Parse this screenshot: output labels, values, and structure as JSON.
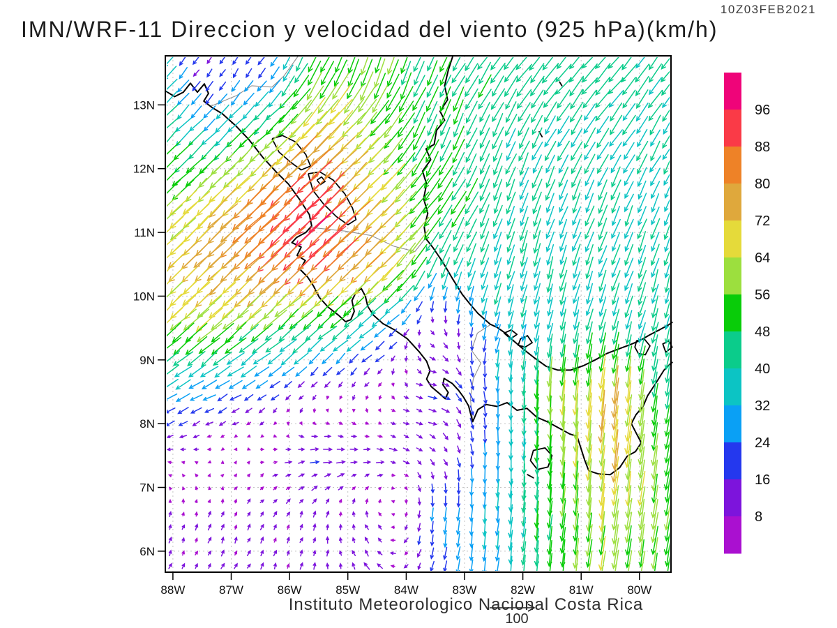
{
  "header": {
    "title": "IMN/WRF-11 Direccion y velocidad del viento (925 hPa)(km/h)",
    "timestamp": "10Z03FEB2021"
  },
  "footer": {
    "caption": "Instituto Meteorologico Nacional Costa Rica",
    "ref_label": "100",
    "ref_speed_kmh": 100
  },
  "axes": {
    "lat_labels": [
      [
        "13N",
        13
      ],
      [
        "12N",
        12
      ],
      [
        "11N",
        11
      ],
      [
        "10N",
        10
      ],
      [
        "9N",
        9
      ],
      [
        "8N",
        8
      ],
      [
        "7N",
        7
      ],
      [
        "6N",
        6
      ]
    ],
    "lon_labels": [
      [
        "88W",
        -88
      ],
      [
        "87W",
        -87
      ],
      [
        "86W",
        -86
      ],
      [
        "85W",
        -85
      ],
      [
        "84W",
        -84
      ],
      [
        "83W",
        -83
      ],
      [
        "82W",
        -82
      ],
      [
        "81W",
        -81
      ],
      [
        "80W",
        -80
      ]
    ]
  },
  "colorbar": {
    "labels": [
      "96",
      "88",
      "80",
      "72",
      "64",
      "56",
      "48",
      "40",
      "32",
      "24",
      "16",
      "8"
    ],
    "colors_low_to_high": [
      "#aa10d0",
      "#7d14dc",
      "#2438ee",
      "#0aa0f5",
      "#0cc4c4",
      "#0bcc8b",
      "#09cc09",
      "#9cdf3e",
      "#e5da3a",
      "#dfa83c",
      "#ee8227",
      "#fa3a47",
      "#ef0479"
    ]
  },
  "chart_data": {
    "type": "vector_field",
    "variable": "Direccion y velocidad del viento",
    "model": "IMN/WRF-11",
    "level": "925 hPa",
    "units": "km/h",
    "valid_time": "10Z03FEB2021",
    "lon_range": [
      -88.13,
      -79.46
    ],
    "lat_range": [
      5.67,
      13.77
    ],
    "speed_bin_width": 8,
    "speed_bins": [
      8,
      16,
      24,
      32,
      40,
      48,
      56,
      64,
      72,
      80,
      88,
      96
    ],
    "grid_lons": [
      -88.5,
      -87.5,
      -86.5,
      -85.5,
      -84.5,
      -83.5,
      -82.5,
      -81.5,
      -80.5,
      -79.5
    ],
    "grid_lats": [
      13.5,
      12.5,
      11.5,
      10.5,
      9.5,
      8.5,
      7.5,
      6.5,
      5.5
    ],
    "u_kmh": [
      [
        -32,
        -8,
        -12,
        -25,
        -18,
        -20,
        -25,
        -28,
        -27,
        -26
      ],
      [
        -38,
        -24,
        -36,
        -56,
        -42,
        -18,
        -18,
        -20,
        -22,
        -20
      ],
      [
        -40,
        -48,
        -60,
        -68,
        -50,
        -32,
        -15,
        -14,
        -16,
        -14
      ],
      [
        -50,
        -55,
        -60,
        -64,
        -58,
        -18,
        -12,
        -10,
        -15,
        -12
      ],
      [
        -44,
        -44,
        -40,
        -35,
        -25,
        6,
        -8,
        -8,
        -10,
        -10
      ],
      [
        -28,
        -24,
        -17,
        -5,
        -4,
        18,
        0,
        -4,
        -8,
        -8
      ],
      [
        -10,
        -4,
        6,
        16,
        14,
        7,
        0,
        -3,
        -8,
        -8
      ],
      [
        2,
        3,
        4,
        3,
        -5,
        -3,
        -3,
        -5,
        -8,
        -9
      ],
      [
        4,
        5,
        4,
        2,
        -12,
        -4,
        -4,
        -6,
        -8,
        -8
      ]
    ],
    "v_kmh": [
      [
        -32,
        -12,
        -16,
        -48,
        -52,
        -42,
        -38,
        -34,
        -33,
        -32
      ],
      [
        -38,
        -26,
        -36,
        -54,
        -42,
        -45,
        -40,
        -36,
        -34,
        -34
      ],
      [
        -38,
        -45,
        -58,
        -65,
        -50,
        -42,
        -40,
        -38,
        -36,
        -34
      ],
      [
        -48,
        -52,
        -58,
        -62,
        -55,
        -36,
        -40,
        -40,
        -36,
        -40
      ],
      [
        -42,
        -40,
        -35,
        -30,
        -20,
        -6,
        -30,
        -36,
        -36,
        -40
      ],
      [
        -16,
        -13,
        -10,
        -8,
        -6,
        -3,
        -26,
        -62,
        -74,
        -45
      ],
      [
        0,
        0,
        1,
        2,
        0,
        -7,
        -27,
        -52,
        -70,
        -55
      ],
      [
        7,
        9,
        9,
        10,
        9,
        -24,
        -32,
        -50,
        -62,
        -55
      ],
      [
        7,
        8,
        9,
        10,
        10,
        -20,
        -30,
        -48,
        -58,
        -50
      ]
    ],
    "geo": {
      "coastlines": [
        [
          [
            -88.13,
            13.22
          ],
          [
            -87.97,
            13.13
          ],
          [
            -87.82,
            13.2
          ],
          [
            -87.7,
            13.34
          ],
          [
            -87.58,
            13.2
          ],
          [
            -87.46,
            13.33
          ],
          [
            -87.39,
            13.18
          ],
          [
            -87.47,
            13.06
          ],
          [
            -87.33,
            12.96
          ],
          [
            -87.15,
            12.86
          ],
          [
            -86.93,
            12.68
          ],
          [
            -86.7,
            12.46
          ],
          [
            -86.46,
            12.18
          ],
          [
            -86.22,
            11.94
          ],
          [
            -86.02,
            11.76
          ],
          [
            -85.83,
            11.52
          ],
          [
            -85.66,
            11.28
          ],
          [
            -85.62,
            11.1
          ],
          [
            -85.72,
            11.0
          ],
          [
            -85.88,
            10.92
          ],
          [
            -85.96,
            10.84
          ],
          [
            -85.8,
            10.77
          ],
          [
            -85.87,
            10.64
          ],
          [
            -85.73,
            10.56
          ],
          [
            -85.82,
            10.42
          ],
          [
            -85.69,
            10.3
          ],
          [
            -85.59,
            10.16
          ],
          [
            -85.49,
            9.98
          ],
          [
            -85.34,
            9.83
          ],
          [
            -85.16,
            9.7
          ],
          [
            -85.04,
            9.6
          ],
          [
            -84.95,
            9.63
          ],
          [
            -84.89,
            9.76
          ],
          [
            -84.93,
            9.93
          ],
          [
            -84.86,
            10.06
          ],
          [
            -84.77,
            10.12
          ],
          [
            -84.7,
            10.0
          ],
          [
            -84.66,
            9.84
          ],
          [
            -84.56,
            9.7
          ],
          [
            -84.4,
            9.57
          ],
          [
            -84.2,
            9.47
          ],
          [
            -83.98,
            9.33
          ],
          [
            -83.78,
            9.13
          ],
          [
            -83.65,
            8.98
          ],
          [
            -83.59,
            8.83
          ],
          [
            -83.65,
            8.7
          ],
          [
            -83.57,
            8.58
          ],
          [
            -83.44,
            8.48
          ],
          [
            -83.33,
            8.39
          ],
          [
            -83.28,
            8.49
          ],
          [
            -83.37,
            8.61
          ],
          [
            -83.35,
            8.71
          ],
          [
            -83.21,
            8.63
          ],
          [
            -83.1,
            8.52
          ],
          [
            -83.02,
            8.42
          ],
          [
            -82.93,
            8.28
          ],
          [
            -82.86,
            8.03
          ],
          [
            -82.77,
            8.22
          ],
          [
            -82.63,
            8.3
          ],
          [
            -82.44,
            8.27
          ],
          [
            -82.27,
            8.33
          ],
          [
            -82.1,
            8.21
          ],
          [
            -81.93,
            8.24
          ],
          [
            -81.76,
            8.1
          ],
          [
            -81.58,
            8.03
          ],
          [
            -81.38,
            7.93
          ],
          [
            -81.2,
            7.84
          ],
          [
            -81.07,
            7.8
          ],
          [
            -81.01,
            7.63
          ],
          [
            -80.94,
            7.43
          ],
          [
            -80.87,
            7.26
          ],
          [
            -80.7,
            7.21
          ],
          [
            -80.5,
            7.2
          ],
          [
            -80.34,
            7.31
          ],
          [
            -80.21,
            7.49
          ],
          [
            -80.07,
            7.56
          ],
          [
            -79.97,
            7.7
          ],
          [
            -80.05,
            7.84
          ],
          [
            -80.14,
            8.0
          ],
          [
            -80.06,
            8.14
          ],
          [
            -79.94,
            8.27
          ],
          [
            -79.86,
            8.44
          ],
          [
            -79.73,
            8.62
          ],
          [
            -79.58,
            8.84
          ],
          [
            -79.48,
            8.93
          ],
          [
            -79.44,
            8.96
          ]
        ],
        [
          [
            -83.2,
            13.77
          ],
          [
            -83.28,
            13.54
          ],
          [
            -83.34,
            13.3
          ],
          [
            -83.29,
            13.08
          ],
          [
            -83.42,
            12.9
          ],
          [
            -83.34,
            12.76
          ],
          [
            -83.48,
            12.6
          ],
          [
            -83.52,
            12.38
          ],
          [
            -83.66,
            12.31
          ],
          [
            -83.58,
            12.14
          ],
          [
            -83.72,
            11.96
          ],
          [
            -83.65,
            11.76
          ],
          [
            -83.7,
            11.53
          ],
          [
            -83.63,
            11.3
          ],
          [
            -83.69,
            11.08
          ],
          [
            -83.66,
            10.9
          ],
          [
            -83.54,
            10.76
          ],
          [
            -83.37,
            10.53
          ],
          [
            -83.21,
            10.28
          ],
          [
            -83.04,
            10.03
          ],
          [
            -82.91,
            9.88
          ],
          [
            -82.77,
            9.73
          ],
          [
            -82.61,
            9.6
          ],
          [
            -82.56,
            9.56
          ],
          [
            -82.44,
            9.51
          ],
          [
            -82.3,
            9.42
          ],
          [
            -82.16,
            9.3
          ],
          [
            -81.98,
            9.16
          ],
          [
            -81.8,
            9.03
          ],
          [
            -81.6,
            8.9
          ],
          [
            -81.4,
            8.84
          ],
          [
            -81.18,
            8.84
          ],
          [
            -80.96,
            8.91
          ],
          [
            -80.76,
            9.0
          ],
          [
            -80.56,
            9.1
          ],
          [
            -80.36,
            9.17
          ],
          [
            -80.16,
            9.24
          ],
          [
            -79.98,
            9.31
          ],
          [
            -79.83,
            9.39
          ],
          [
            -79.66,
            9.47
          ],
          [
            -79.5,
            9.55
          ],
          [
            -79.44,
            9.59
          ]
        ]
      ],
      "lakes": [
        [
          [
            -86.3,
            12.47
          ],
          [
            -86.12,
            12.52
          ],
          [
            -85.9,
            12.42
          ],
          [
            -85.72,
            12.22
          ],
          [
            -85.64,
            12.04
          ],
          [
            -85.8,
            11.98
          ],
          [
            -85.98,
            12.1
          ],
          [
            -86.18,
            12.26
          ],
          [
            -86.3,
            12.47
          ]
        ],
        [
          [
            -85.68,
            11.92
          ],
          [
            -85.48,
            11.95
          ],
          [
            -85.25,
            11.82
          ],
          [
            -85.05,
            11.6
          ],
          [
            -84.92,
            11.38
          ],
          [
            -84.86,
            11.2
          ],
          [
            -85.0,
            11.12
          ],
          [
            -85.2,
            11.25
          ],
          [
            -85.42,
            11.45
          ],
          [
            -85.6,
            11.66
          ],
          [
            -85.68,
            11.92
          ]
        ],
        [
          [
            -85.53,
            11.82
          ],
          [
            -85.45,
            11.87
          ],
          [
            -85.39,
            11.8
          ],
          [
            -85.47,
            11.75
          ],
          [
            -85.53,
            11.82
          ]
        ]
      ],
      "islands": [
        [
          [
            -82.32,
            9.42
          ],
          [
            -82.2,
            9.47
          ],
          [
            -82.1,
            9.4
          ],
          [
            -82.21,
            9.33
          ],
          [
            -82.32,
            9.42
          ]
        ],
        [
          [
            -82.04,
            9.33
          ],
          [
            -81.92,
            9.38
          ],
          [
            -81.84,
            9.27
          ],
          [
            -81.96,
            9.2
          ],
          [
            -82.08,
            9.23
          ],
          [
            -82.04,
            9.33
          ]
        ],
        [
          [
            -81.82,
            7.58
          ],
          [
            -81.62,
            7.62
          ],
          [
            -81.5,
            7.5
          ],
          [
            -81.57,
            7.32
          ],
          [
            -81.75,
            7.28
          ],
          [
            -81.87,
            7.42
          ],
          [
            -81.82,
            7.58
          ]
        ],
        [
          [
            -81.92,
            7.2
          ],
          [
            -81.82,
            7.15
          ]
        ],
        [
          [
            -81.72,
            12.58
          ],
          [
            -81.67,
            12.5
          ]
        ],
        [
          [
            -81.37,
            13.36
          ],
          [
            -81.33,
            13.3
          ]
        ],
        [
          [
            -80.05,
            9.3
          ],
          [
            -79.92,
            9.33
          ],
          [
            -79.82,
            9.22
          ],
          [
            -79.9,
            9.08
          ],
          [
            -80.02,
            9.1
          ],
          [
            -80.08,
            9.2
          ],
          [
            -80.05,
            9.3
          ]
        ],
        [
          [
            -79.6,
            9.25
          ],
          [
            -79.5,
            9.3
          ],
          [
            -79.44,
            9.2
          ],
          [
            -79.55,
            9.12
          ],
          [
            -79.6,
            9.25
          ]
        ]
      ],
      "borders": [
        [
          [
            -85.65,
            11.08
          ],
          [
            -85.05,
            11.02
          ],
          [
            -84.6,
            10.95
          ],
          [
            -84.2,
            10.78
          ],
          [
            -83.85,
            10.7
          ],
          [
            -83.66,
            10.92
          ]
        ],
        [
          [
            -82.56,
            9.55
          ],
          [
            -82.78,
            9.42
          ],
          [
            -82.88,
            9.15
          ],
          [
            -82.72,
            8.95
          ],
          [
            -82.85,
            8.7
          ],
          [
            -82.9,
            8.4
          ],
          [
            -82.86,
            8.03
          ]
        ],
        [
          [
            -87.35,
            12.98
          ],
          [
            -86.9,
            13.15
          ],
          [
            -86.65,
            13.3
          ],
          [
            -86.3,
            13.28
          ],
          [
            -86.1,
            13.45
          ],
          [
            -85.85,
            13.77
          ]
        ]
      ]
    }
  }
}
